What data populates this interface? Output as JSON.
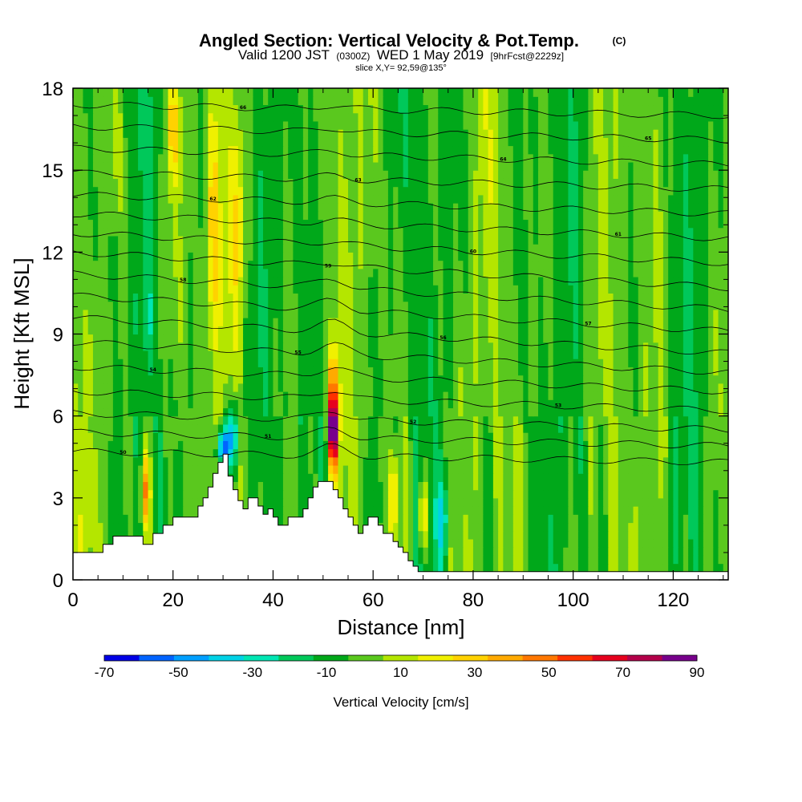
{
  "chart_data": {
    "type": "heatmap",
    "title": {
      "main": "Angled Section: Vertical Velocity & Pot.Temp.",
      "main_unit": "(C)",
      "line2_a": "Valid 1200 JST",
      "line2_b": "(0300Z)",
      "line2_c": "WED 1 May 2019",
      "line2_d": "[9hrFcst@2229z]",
      "line3": "slice X,Y= 92,59@135°"
    },
    "xlabel": "Distance [nm]",
    "ylabel": "Height [Kft MSL]",
    "xlim": [
      0,
      131
    ],
    "ylim": [
      0,
      18
    ],
    "x_ticks": [
      0,
      20,
      40,
      60,
      80,
      100,
      120
    ],
    "y_ticks": [
      0,
      3,
      6,
      9,
      12,
      15,
      18
    ],
    "colorbar": {
      "label": "Vertical Velocity [cm/s]",
      "tick_labels": [
        -70,
        -50,
        -30,
        -10,
        10,
        30,
        50,
        70,
        90
      ],
      "bins": [
        -70,
        -60,
        -50,
        -40,
        -30,
        -20,
        -10,
        0,
        10,
        20,
        30,
        40,
        50,
        60,
        70,
        80,
        90
      ],
      "colors": [
        "#0000e6",
        "#0064ff",
        "#00a0ff",
        "#00d2e6",
        "#00e6b4",
        "#00c85a",
        "#00a81a",
        "#5ac81e",
        "#b4e600",
        "#f0f000",
        "#ffd200",
        "#ffaa00",
        "#ff7800",
        "#ff3200",
        "#e6001e",
        "#b4004b",
        "#78008c"
      ]
    },
    "terrain": {
      "x": [
        0,
        0,
        6,
        6,
        8,
        8,
        10,
        10,
        14,
        14,
        16,
        16,
        18,
        18,
        20,
        20,
        25,
        25,
        26,
        26,
        27,
        27,
        28,
        28,
        29,
        29,
        30,
        30,
        31,
        31,
        32,
        32,
        33,
        33,
        34,
        34,
        35,
        35,
        37,
        37,
        38,
        38,
        39,
        39,
        40,
        40,
        41,
        41,
        42,
        42,
        43,
        43,
        46,
        46,
        47,
        47,
        48,
        48,
        49,
        49,
        50,
        50,
        52,
        52,
        53,
        53,
        54,
        54,
        55,
        55,
        56,
        56,
        57,
        57,
        58,
        58,
        59,
        59,
        60,
        60,
        61,
        61,
        62,
        62,
        64,
        64,
        65,
        65,
        66,
        66,
        67,
        67,
        68,
        68,
        69,
        69,
        70,
        70,
        131
      ],
      "y": [
        1.0,
        1.0,
        1.0,
        1.3,
        1.3,
        1.6,
        1.6,
        1.6,
        1.6,
        1.3,
        1.3,
        1.7,
        1.7,
        2.0,
        2.0,
        2.3,
        2.3,
        2.7,
        2.7,
        3.0,
        3.0,
        3.4,
        3.4,
        3.9,
        3.9,
        4.3,
        4.3,
        4.6,
        4.6,
        3.8,
        3.8,
        3.3,
        3.3,
        2.9,
        2.9,
        2.6,
        2.6,
        3.0,
        3.0,
        2.7,
        2.7,
        2.4,
        2.4,
        2.6,
        2.6,
        2.3,
        2.3,
        2.0,
        2.0,
        2.0,
        2.0,
        2.3,
        2.3,
        2.6,
        2.6,
        3.0,
        3.0,
        3.4,
        3.4,
        3.6,
        3.6,
        3.6,
        3.6,
        3.3,
        3.3,
        3.0,
        3.0,
        2.6,
        2.6,
        2.3,
        2.3,
        2.0,
        2.0,
        1.7,
        1.7,
        2.0,
        2.0,
        2.3,
        2.3,
        2.3,
        2.3,
        2.0,
        2.0,
        1.7,
        1.7,
        1.4,
        1.4,
        1.2,
        1.2,
        1.0,
        1.0,
        0.7,
        0.7,
        0.5,
        0.5,
        0.3,
        0.3,
        0.3,
        0.3
      ]
    },
    "theta_contours": [
      {
        "label": "50",
        "y0": 4.7,
        "y1": 4.3
      },
      {
        "label": "51",
        "y0": 5.4,
        "y1": 4.9
      },
      {
        "label": "52",
        "y0": 6.1,
        "y1": 5.5
      },
      {
        "label": "53",
        "y0": 6.9,
        "y1": 6.2
      },
      {
        "label": "54",
        "y0": 7.8,
        "y1": 6.9
      },
      {
        "label": "55",
        "y0": 8.7,
        "y1": 7.6
      },
      {
        "label": "56",
        "y0": 9.6,
        "y1": 8.3
      },
      {
        "label": "57",
        "y0": 10.4,
        "y1": 9.1
      },
      {
        "label": "58",
        "y0": 11.2,
        "y1": 9.9
      },
      {
        "label": "59",
        "y0": 12.0,
        "y1": 10.7
      },
      {
        "label": "60",
        "y0": 12.7,
        "y1": 11.6
      },
      {
        "label": "61",
        "y0": 13.4,
        "y1": 12.5
      },
      {
        "label": "62",
        "y0": 14.1,
        "y1": 13.4
      },
      {
        "label": "63",
        "y0": 14.9,
        "y1": 14.3
      },
      {
        "label": "64",
        "y0": 15.8,
        "y1": 15.2
      },
      {
        "label": "65",
        "y0": 16.6,
        "y1": 16.1
      },
      {
        "label": "66",
        "y0": 17.4,
        "y1": 17.0
      }
    ],
    "features": [
      {
        "x": 52,
        "y": 5.4,
        "w": -4,
        "value": 85,
        "sx": 0.9,
        "sy": 1.2
      },
      {
        "x": 52,
        "y": 6.8,
        "w": -2,
        "value": 45,
        "sx": 1.1,
        "sy": 1.6
      },
      {
        "x": 30,
        "y": 4.8,
        "w": -4,
        "value": -65,
        "sx": 1.2,
        "sy": 0.8
      },
      {
        "x": 32,
        "y": 5.3,
        "w": -3,
        "value": -40,
        "sx": 1.6,
        "sy": 1.3
      },
      {
        "x": 74,
        "y": 2.2,
        "w": -3,
        "value": -35,
        "sx": 1.0,
        "sy": 1.6
      },
      {
        "x": 70,
        "y": 2.4,
        "w": -2,
        "value": 45,
        "sx": 0.8,
        "sy": 1.3
      },
      {
        "x": 14.5,
        "y": 3.3,
        "w": -2,
        "value": 45,
        "sx": 0.9,
        "sy": 1.4
      },
      {
        "x": 64,
        "y": 3.0,
        "w": -2,
        "value": 35,
        "sx": 0.9,
        "sy": 1.6
      },
      {
        "x": 28,
        "y": 13.0,
        "w": 0,
        "value": 28,
        "sx": 1.5,
        "sy": 4.5
      },
      {
        "x": 20,
        "y": 16.5,
        "w": 0,
        "value": 28,
        "sx": 1.5,
        "sy": 2.0
      },
      {
        "x": 33,
        "y": 13.0,
        "w": 0,
        "value": 22,
        "sx": 1.2,
        "sy": 3.5
      },
      {
        "x": 8,
        "y": 11.5,
        "w": 0,
        "value": -12,
        "sx": 1.3,
        "sy": 1.5
      },
      {
        "x": 15,
        "y": 9.5,
        "w": 0,
        "value": -12,
        "sx": 1.0,
        "sy": 1.4
      }
    ]
  }
}
